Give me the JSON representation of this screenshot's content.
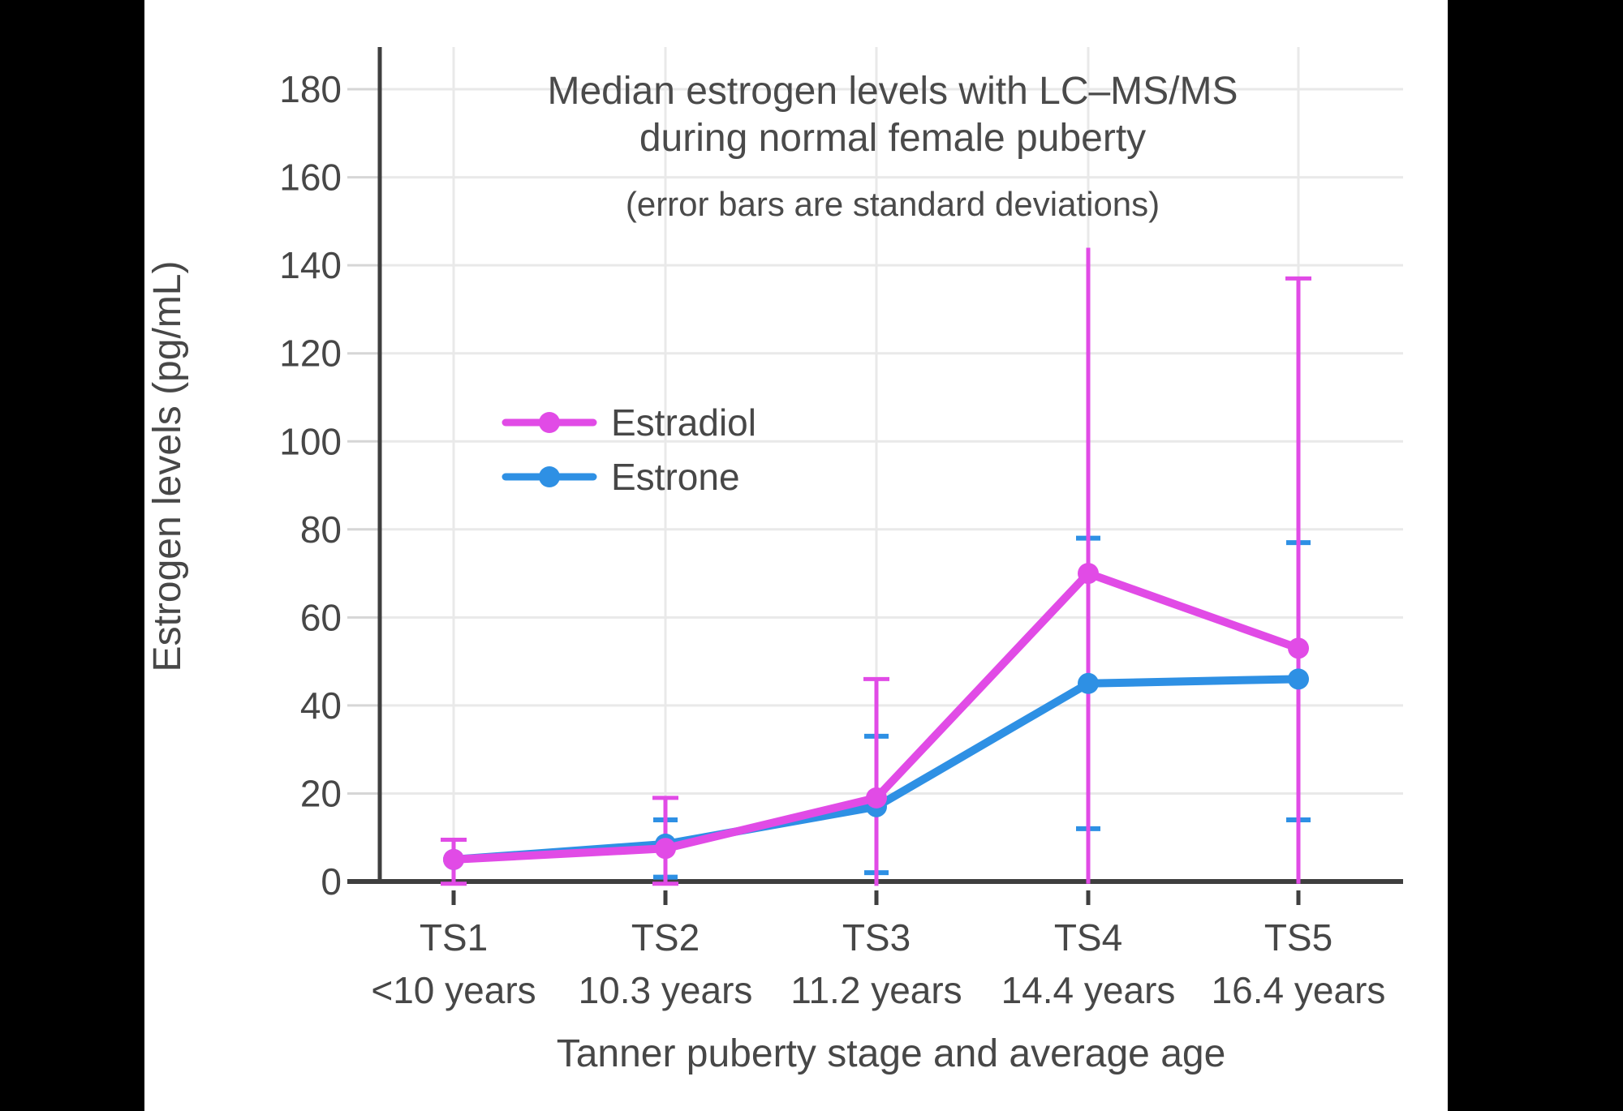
{
  "canvas": {
    "background": "#000000",
    "chart_background": "#ffffff"
  },
  "colors": {
    "estradiol": "#E14BE6",
    "estrone": "#2E90E4",
    "axis": "#3f3f3f",
    "grid": "#e9e9e9",
    "light_tick": "#d6d6d6",
    "text": "#474747",
    "title_text": "#4a4a4a"
  },
  "chart_data": {
    "type": "line",
    "title": "Median estrogen levels with LC–MS/MS",
    "title_line2": "during normal female puberty",
    "subtitle": "(error bars are standard deviations)",
    "xlabel": "Tanner puberty stage and average age",
    "ylabel": "Estrogen levels (pg/mL)",
    "categories": [
      "TS1",
      "TS2",
      "TS3",
      "TS4",
      "TS5"
    ],
    "category_sublabels": [
      "<10 years",
      "10.3 years",
      "11.2 years",
      "14.4 years",
      "16.4 years"
    ],
    "yticks": [
      0,
      20,
      40,
      60,
      80,
      100,
      120,
      140,
      160,
      180
    ],
    "ylim": [
      0,
      190
    ],
    "grid": true,
    "legend_position": "inside-upper-left",
    "series": [
      {
        "name": "Estradiol",
        "color": "#E14BE6",
        "values": [
          5,
          7.5,
          19,
          70,
          53
        ],
        "error_high": [
          9.5,
          19,
          46,
          144,
          137
        ],
        "error_low": [
          -0.5,
          -0.5,
          -1,
          -0.5,
          -0.5
        ],
        "cap_high": [
          true,
          true,
          true,
          false,
          true
        ],
        "cap_low": [
          true,
          true,
          false,
          false,
          false
        ]
      },
      {
        "name": "Estrone",
        "color": "#2E90E4",
        "values": [
          5,
          8.5,
          17,
          45,
          46
        ],
        "error_high": [
          null,
          14,
          33,
          78,
          77
        ],
        "error_low": [
          null,
          1,
          2,
          12,
          14
        ],
        "cap_high": [
          false,
          true,
          true,
          true,
          true
        ],
        "cap_low": [
          false,
          true,
          true,
          true,
          true
        ]
      }
    ]
  }
}
